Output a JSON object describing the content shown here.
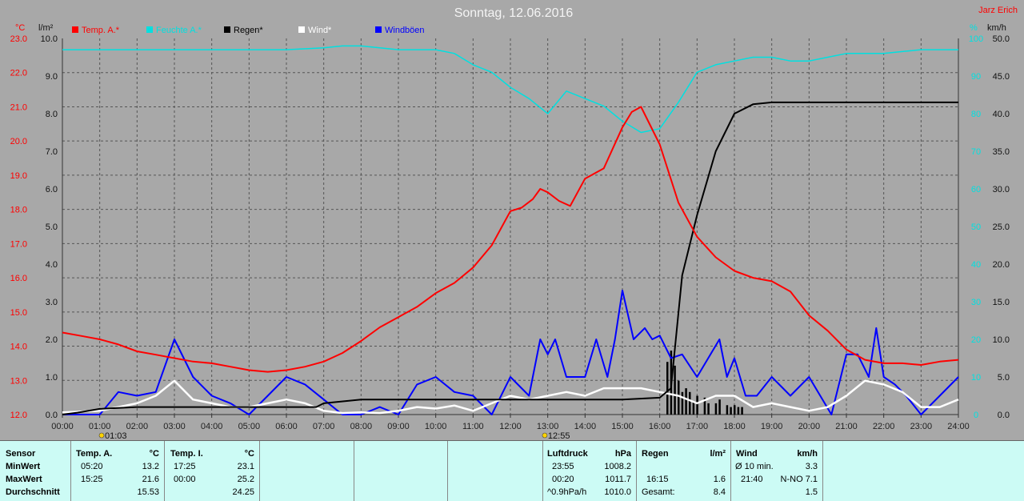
{
  "title": "Sonntag, 12.06.2016",
  "author": "Jarz Erich",
  "colors": {
    "temp": "#ff0000",
    "humidity": "#00e0e0",
    "rain": "#000000",
    "wind": "#ffffff",
    "gust": "#0000ff",
    "grid": "#555555",
    "plot": "#a8a8a8"
  },
  "chart_data": {
    "type": "line",
    "title": "Sonntag, 12.06.2016",
    "x_labels": [
      "00:00",
      "01:00",
      "02:00",
      "03:00",
      "04:00",
      "05:00",
      "06:00",
      "07:00",
      "08:00",
      "09:00",
      "10:00",
      "11:00",
      "12:00",
      "13:00",
      "14:00",
      "15:00",
      "16:00",
      "17:00",
      "18:00",
      "19:00",
      "20:00",
      "21:00",
      "22:00",
      "23:00",
      "24:00"
    ],
    "x_range_hours": [
      0,
      24
    ],
    "axes": {
      "temp": {
        "unit": "°C",
        "ticks": [
          "23.0",
          "22.0",
          "21.0",
          "20.0",
          "19.0",
          "18.0",
          "17.0",
          "16.0",
          "15.0",
          "14.0",
          "13.0",
          "12.0"
        ],
        "range": [
          12,
          23
        ]
      },
      "rain": {
        "unit": "l/m²",
        "ticks": [
          "10.0",
          "9.0",
          "8.0",
          "7.0",
          "6.0",
          "5.0",
          "4.0",
          "3.0",
          "2.0",
          "1.0",
          "0.0"
        ],
        "range": [
          0,
          10
        ]
      },
      "humidity": {
        "unit": "%",
        "ticks": [
          "100",
          "90",
          "80",
          "70",
          "60",
          "50",
          "40",
          "30",
          "20",
          "10",
          "0"
        ],
        "range": [
          0,
          100
        ]
      },
      "wind": {
        "unit": "km/h",
        "ticks": [
          "50.0",
          "45.0",
          "40.0",
          "35.0",
          "30.0",
          "25.0",
          "20.0",
          "15.0",
          "10.0",
          "5.0",
          "0.0"
        ],
        "range": [
          0,
          50
        ]
      }
    },
    "legend": [
      "Temp. A.*",
      "Feuchte A.*",
      "Regen*",
      "Wind*",
      "Windböen"
    ],
    "markers": [
      {
        "label": "01:03",
        "x": 1.05
      },
      {
        "label": "12:55",
        "x": 12.92
      }
    ],
    "grid": true,
    "series": [
      {
        "name": "Temp. A.*",
        "axis": "temp",
        "x": [
          0,
          0.5,
          1,
          1.5,
          2,
          2.5,
          3,
          3.5,
          4,
          4.5,
          5,
          5.5,
          6,
          6.5,
          7,
          7.5,
          8,
          8.5,
          9,
          9.5,
          10,
          10.5,
          11,
          11.5,
          12,
          12.3,
          12.6,
          12.8,
          13,
          13.3,
          13.6,
          14,
          14.5,
          15,
          15.25,
          15.5,
          16,
          16.5,
          17,
          17.5,
          18,
          18.5,
          19,
          19.5,
          20,
          20.5,
          21,
          21.5,
          22,
          22.5,
          23,
          23.5,
          24
        ],
        "y": [
          14.4,
          14.3,
          14.2,
          14.05,
          13.85,
          13.75,
          13.65,
          13.55,
          13.5,
          13.4,
          13.3,
          13.25,
          13.3,
          13.4,
          13.55,
          13.8,
          14.15,
          14.55,
          14.85,
          15.15,
          15.55,
          15.85,
          16.3,
          16.95,
          17.95,
          18.05,
          18.3,
          18.6,
          18.5,
          18.25,
          18.1,
          18.9,
          19.2,
          20.4,
          20.85,
          21.0,
          19.9,
          18.2,
          17.2,
          16.6,
          16.2,
          16.0,
          15.9,
          15.6,
          14.9,
          14.45,
          13.9,
          13.6,
          13.5,
          13.5,
          13.45,
          13.55,
          13.6
        ]
      },
      {
        "name": "Feuchte A.*",
        "axis": "humidity",
        "x": [
          0,
          1,
          2,
          3,
          4,
          5,
          6,
          7,
          7.5,
          8,
          8.5,
          9,
          10,
          10.5,
          11,
          11.5,
          12,
          12.5,
          13,
          13.5,
          14,
          14.5,
          15,
          15.5,
          16,
          16.5,
          17,
          17.5,
          18,
          18.5,
          19,
          19.5,
          20,
          20.5,
          21,
          21.5,
          22,
          22.5,
          23,
          24
        ],
        "y": [
          97,
          97,
          97,
          97,
          97,
          97,
          97,
          97.5,
          98,
          98,
          97.5,
          97,
          97,
          96,
          93,
          91,
          87,
          84,
          80,
          86,
          84,
          82,
          78,
          75,
          76,
          83,
          91,
          93,
          94,
          95,
          95,
          94,
          94,
          95,
          96,
          96,
          96,
          96.5,
          97,
          97
        ]
      },
      {
        "name": "Regen*",
        "axis": "rain",
        "x": [
          0,
          0.4,
          1,
          2,
          3,
          4,
          5,
          6,
          6.8,
          7,
          8,
          9,
          10,
          11,
          12,
          13,
          14,
          15,
          16,
          16.3,
          16.6,
          17,
          17.5,
          18,
          18.5,
          19,
          19.5,
          20,
          21,
          22,
          23,
          24
        ],
        "y": [
          0,
          0.05,
          0.15,
          0.2,
          0.2,
          0.2,
          0.2,
          0.2,
          0.2,
          0.3,
          0.4,
          0.4,
          0.4,
          0.4,
          0.4,
          0.4,
          0.4,
          0.4,
          0.45,
          0.7,
          3.7,
          5.3,
          7.0,
          8.0,
          8.25,
          8.3,
          8.3,
          8.3,
          8.3,
          8.3,
          8.3,
          8.3
        ]
      },
      {
        "name": "Wind*",
        "axis": "wind",
        "x": [
          0,
          1,
          1.5,
          2,
          2.5,
          3,
          3.5,
          4,
          4.5,
          5,
          5.5,
          6,
          6.5,
          7,
          7.5,
          8,
          8.5,
          9,
          9.5,
          10,
          10.5,
          11,
          11.5,
          12,
          12.5,
          13,
          13.5,
          14,
          14.5,
          15,
          15.5,
          16,
          16.5,
          17,
          17.5,
          18,
          18.5,
          19,
          19.5,
          20,
          20.5,
          21,
          21.5,
          22,
          22.5,
          23,
          23.5,
          24
        ],
        "y": [
          0.3,
          0.5,
          1.0,
          1.5,
          2.5,
          4.5,
          2.0,
          1.5,
          1.0,
          1.0,
          1.5,
          2.0,
          1.5,
          0.5,
          0.2,
          0.3,
          0.2,
          0.5,
          1.0,
          0.8,
          1.2,
          0.5,
          1.5,
          2.5,
          2.0,
          2.5,
          3.0,
          2.5,
          3.5,
          3.5,
          3.5,
          3.0,
          2.5,
          1.5,
          2.5,
          2.5,
          1.0,
          1.5,
          1.0,
          0.5,
          1.0,
          2.5,
          4.5,
          4.0,
          3.0,
          1.0,
          1.0,
          2.0
        ]
      },
      {
        "name": "Windböen",
        "axis": "wind",
        "x": [
          0,
          1,
          1.5,
          2,
          2.5,
          3,
          3.5,
          4,
          4.5,
          5,
          5.5,
          6,
          6.5,
          7,
          7.5,
          8,
          8.5,
          9,
          9.5,
          10,
          10.5,
          11,
          11.5,
          12,
          12.5,
          12.8,
          13,
          13.2,
          13.5,
          14,
          14.3,
          14.6,
          14.8,
          15,
          15.3,
          15.6,
          15.8,
          16,
          16.3,
          16.6,
          17,
          17.3,
          17.6,
          17.8,
          18,
          18.3,
          18.6,
          19,
          19.5,
          20,
          20.3,
          20.6,
          21,
          21.3,
          21.6,
          21.8,
          22,
          22.3,
          22.6,
          23,
          23.5,
          24
        ],
        "y": [
          0,
          0,
          3.0,
          2.5,
          3.0,
          10.0,
          5.0,
          2.5,
          1.5,
          0,
          2.5,
          5.0,
          4.0,
          2.0,
          0,
          0,
          1.0,
          0,
          4.0,
          5.0,
          3.0,
          2.5,
          0,
          5.0,
          2.5,
          10.0,
          8.0,
          10.0,
          5.0,
          5.0,
          10.0,
          5.0,
          10.0,
          16.5,
          10.0,
          11.5,
          10.0,
          10.5,
          7.5,
          8.0,
          5.0,
          7.5,
          10.0,
          5.0,
          7.5,
          2.5,
          2.5,
          5.0,
          2.5,
          5.0,
          2.5,
          0,
          8.0,
          8.0,
          5.0,
          11.5,
          5.0,
          4.0,
          2.5,
          0,
          2.5,
          5.0
        ]
      }
    ]
  },
  "table": {
    "sensor_col": {
      "header": "Sensor",
      "rows": [
        "MinWert",
        "MaxWert",
        "Durchschnitt"
      ]
    },
    "temp_a": {
      "header": "Temp. A.",
      "unit": "°C",
      "min_time": "05:20",
      "min_val": "13.2",
      "max_time": "15:25",
      "max_val": "21.6",
      "avg": "15.53"
    },
    "temp_i": {
      "header": "Temp. I.",
      "unit": "°C",
      "min_time": "17:25",
      "min_val": "23.1",
      "max_time": "00:00",
      "max_val": "25.2",
      "avg": "24.25"
    },
    "pressure": {
      "header": "Luftdruck",
      "unit": "hPa",
      "r1_time": "23:55",
      "r1_val": "1008.2",
      "r2_time": "00:20",
      "r2_val": "1011.7",
      "r3_label": "^0.9hPa/h",
      "r3_val": "1010.0"
    },
    "rain": {
      "header": "Regen",
      "unit": "l/m²",
      "r2_time": "16:15",
      "r2_val": "1.6",
      "r3_label": "Gesamt:",
      "r3_val": "8.4"
    },
    "wind": {
      "header": "Wind",
      "unit": "km/h",
      "r1_label": "Ø 10 min.",
      "r1_val": "3.3",
      "r2_time": "21:40",
      "r2_val": "N-NO 7.1",
      "r3_val": "1.5"
    }
  }
}
